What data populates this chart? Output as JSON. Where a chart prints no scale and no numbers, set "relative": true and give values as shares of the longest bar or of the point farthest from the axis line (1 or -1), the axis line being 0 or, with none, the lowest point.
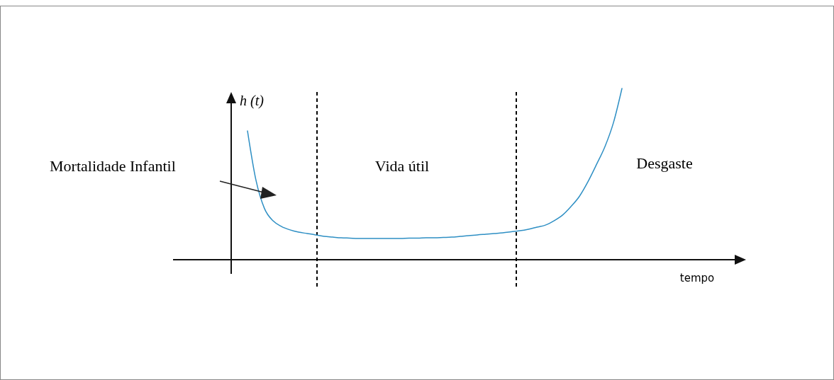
{
  "chart_data": {
    "type": "line",
    "relative": true,
    "ylabel": "h (t)",
    "categories": [
      null,
      null,
      null,
      null,
      null,
      null,
      null,
      null,
      null,
      null,
      null,
      null,
      null,
      null,
      null,
      null,
      null,
      null,
      null,
      null,
      null,
      null,
      null,
      null,
      null,
      null,
      null,
      null,
      null,
      null,
      null,
      null,
      null,
      null,
      null,
      null,
      null,
      null,
      null,
      null,
      null,
      null,
      null,
      null,
      null
    ],
    "series": [
      {
        "color": "#2e8fc4",
        "values": [
          0.752,
          0.463,
          0.298,
          0.227,
          0.194,
          0.174,
          0.161,
          0.153,
          0.145,
          0.136,
          0.132,
          0.128,
          0.126,
          0.124,
          0.124,
          0.124,
          0.124,
          0.124,
          0.124,
          0.126,
          0.126,
          0.128,
          0.128,
          0.13,
          0.132,
          0.136,
          0.14,
          0.145,
          0.149,
          0.153,
          0.157,
          0.163,
          0.169,
          0.178,
          0.19,
          0.202,
          0.227,
          0.26,
          0.31,
          0.37,
          0.455,
          0.555,
          0.66,
          0.8,
          1.0
        ]
      }
    ],
    "annotations": [
      "Mortalidade Infantil",
      "Vida útil",
      "Desgaste",
      "tempo"
    ]
  }
}
